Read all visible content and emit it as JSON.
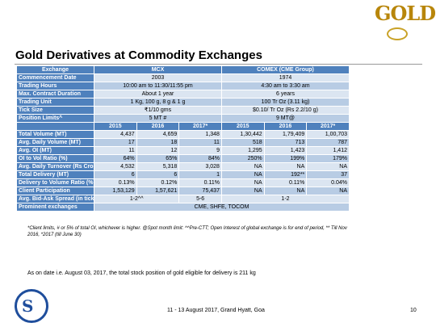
{
  "slide": {
    "title": "Gold Derivatives at Commodity Exchanges",
    "logo_text": "GOLD",
    "stock_note": "As on date i.e. August 03, 2017, the total stock position of gold eligible for delivery is 211 kg",
    "footer": "11 - 13 August 2017, Grand Hyatt, Goa",
    "page_number": "10",
    "footnote": "*Client limits, # or 5% of total OI, whichever is higher. @Spot month limit: ^^Pre-CTT; Open Interest of global exchange is for end of period, ** Till Nov 2016, *2017 (till June 30)"
  },
  "table": {
    "header": [
      "Exchange",
      "MCX",
      "COMEX (CME Group)"
    ],
    "spec_rows": [
      {
        "label": "Commencement Date",
        "mcx": "2003",
        "comex": "1974"
      },
      {
        "label": "Trading Hours",
        "mcx": "10:00 am to 11:30/11:55 pm",
        "comex": "4:30 am to 3:30 am"
      },
      {
        "label": "Max. Contract Duration",
        "mcx": "About 1 year",
        "comex": "6 years"
      },
      {
        "label": "Trading Unit",
        "mcx": "1 Kg, 100 g, 8 g & 1 g",
        "comex": "100 Tr Oz (3.11 kg)"
      },
      {
        "label": "Tick Size",
        "mcx": "₹1/10 gms",
        "comex": "$0.10/ Tr Oz (Rs 2.2/10 g)"
      },
      {
        "label": "Position Limits^",
        "mcx": "5 MT #",
        "comex": "9 MT@"
      }
    ],
    "years": [
      "2015",
      "2016",
      "2017*",
      "2015",
      "2016",
      "2017*"
    ],
    "data_rows": [
      {
        "label": "Total Volume (MT)",
        "values": [
          "4,437",
          "4,659",
          "1,348",
          "1,30,442",
          "1,79,409",
          "1,00,703"
        ]
      },
      {
        "label": "Avg. Daily Volume (MT)",
        "values": [
          "17",
          "18",
          "11",
          "518",
          "713",
          "787"
        ]
      },
      {
        "label": "Avg. OI (MT)",
        "values": [
          "11",
          "12",
          "9",
          "1,295",
          "1,423",
          "1,412"
        ]
      },
      {
        "label": "OI to Vol Ratio (%)",
        "values": [
          "64%",
          "65%",
          "84%",
          "250%",
          "199%",
          "179%"
        ]
      },
      {
        "label": "Avg. Daily Turnover (Rs Crores)",
        "values": [
          "4,532",
          "5,318",
          "3,028",
          "NA",
          "NA",
          "NA"
        ]
      },
      {
        "label": "Total Delivery (MT)",
        "values": [
          "6",
          "6",
          "1",
          "NA",
          "192**",
          "37"
        ]
      },
      {
        "label": "Delivery to Volume Ratio (%)",
        "values": [
          "0.13%",
          "0.12%",
          "0.11%",
          "NA",
          "0.11%",
          "0.04%"
        ]
      },
      {
        "label": "Client Participation",
        "values": [
          "1,53,129",
          "1,57,621",
          "75,437",
          "NA",
          "NA",
          "NA"
        ]
      },
      {
        "label": "Avg. Bid-Ask Spread (in ticks)",
        "values_mcx": "1-2^^",
        "values_mcx_2017": "5-6",
        "values_comex": "1-2"
      },
      {
        "label": "Prominent exchanges",
        "value": "CME, SHFE, TOCOM"
      }
    ]
  }
}
